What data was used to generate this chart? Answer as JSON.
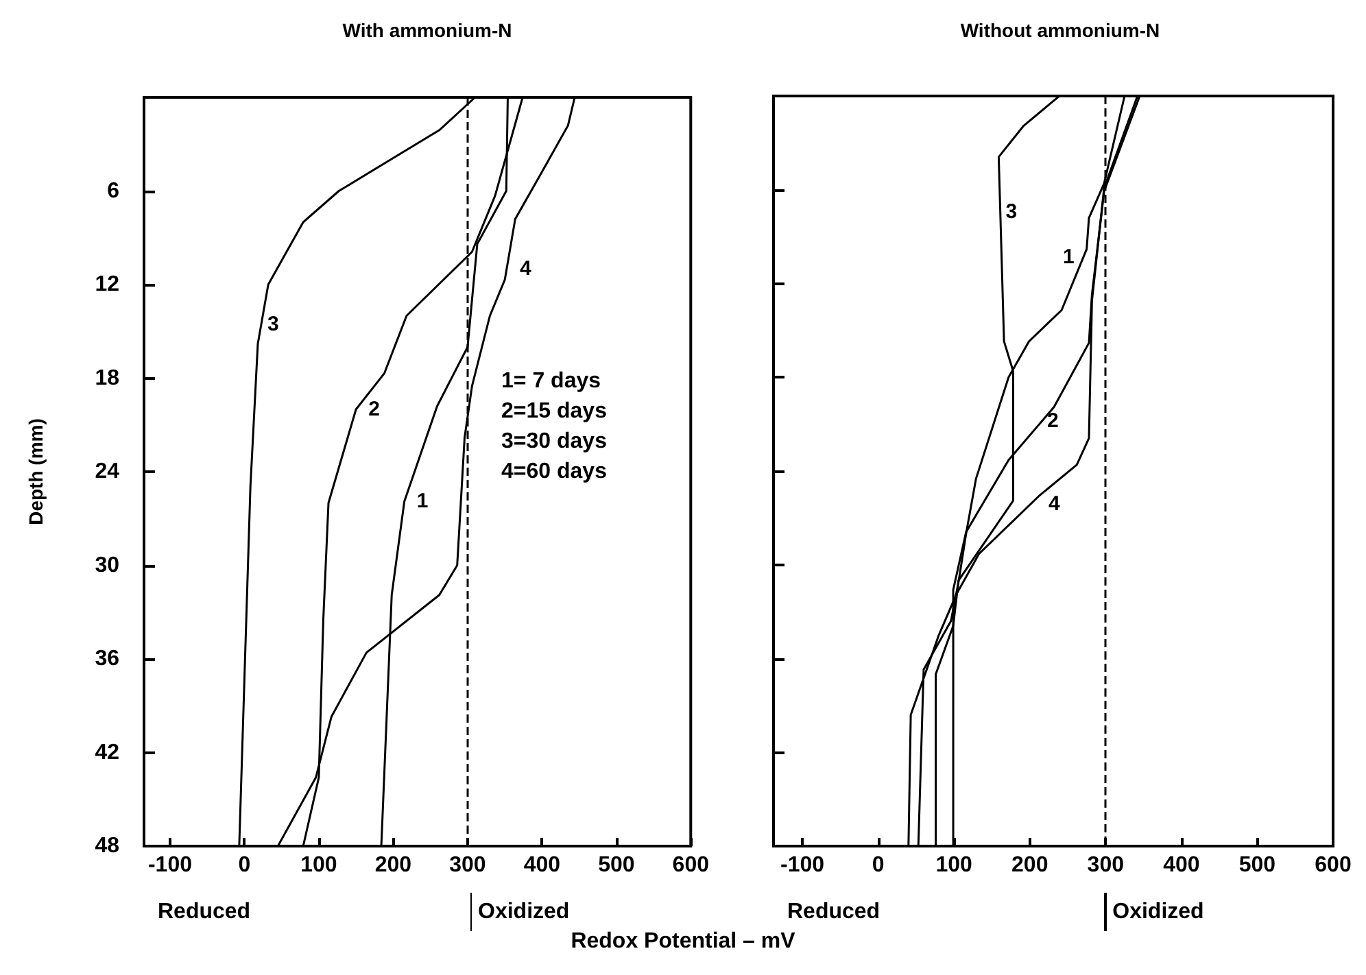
{
  "chart_data": [
    {
      "type": "line",
      "title": "With ammonium-N",
      "xlabel": "Redox Potential – mV",
      "ylabel": "Depth (mm)",
      "xlim": [
        -135,
        600
      ],
      "xticks": [
        -100,
        0,
        100,
        200,
        300,
        400,
        500,
        600
      ],
      "ylim": [
        48,
        0
      ],
      "yticks": [
        6,
        12,
        18,
        24,
        30,
        36,
        42,
        48
      ],
      "grid": false,
      "line_style": "solid",
      "marker": "none",
      "series": [
        {
          "name": "1",
          "color": "#000000",
          "x": [
            354,
            352,
            313,
            300,
            259,
            215,
            198,
            184
          ],
          "values": [
            0,
            6,
            9.4,
            16,
            19.8,
            25.9,
            31.9,
            48
          ]
        },
        {
          "name": "2",
          "color": "#000000",
          "x": [
            374,
            337,
            306,
            218,
            188,
            150,
            113,
            106,
            100,
            79
          ],
          "values": [
            0,
            6.3,
            9.9,
            14,
            17.7,
            20,
            26,
            33.5,
            43.6,
            48
          ]
        },
        {
          "name": "3",
          "color": "#000000",
          "x": [
            310,
            262,
            127,
            79,
            32,
            18,
            8,
            -7
          ],
          "values": [
            0,
            2.1,
            6,
            8,
            12,
            15.8,
            25,
            48
          ]
        },
        {
          "name": "4",
          "color": "#000000",
          "x": [
            444,
            435,
            395,
            364,
            350,
            330,
            306,
            296,
            286,
            262,
            164,
            117,
            96,
            45
          ],
          "values": [
            0,
            1.8,
            5.2,
            7.8,
            11.7,
            14,
            18.5,
            21.8,
            30,
            31.9,
            35.6,
            39.7,
            43.6,
            48
          ]
        }
      ],
      "ref_lines": [
        {
          "axis": "x",
          "value": 300,
          "label": "Oxidized",
          "line_style": "dashed"
        }
      ],
      "annotations": [
        "Reduced",
        "1= 7 days",
        "2=15 days",
        "3=30 days",
        "4=60 days"
      ]
    },
    {
      "type": "line",
      "title": "Without ammonium-N",
      "xlim": [
        -138,
        600
      ],
      "xticks": [
        -100,
        0,
        100,
        200,
        300,
        400,
        500,
        600
      ],
      "ylim": [
        48,
        0
      ],
      "yticks": [
        6,
        12,
        18,
        24,
        30,
        36,
        42,
        48
      ],
      "grid": false,
      "tick_labels": "x",
      "line_style": "solid",
      "marker": "none",
      "series": [
        {
          "name": "1",
          "color": "#000000",
          "x": [
            325,
            298,
            278,
            275,
            242,
            199,
            172,
            129,
            116,
            106,
            96,
            60,
            53
          ],
          "values": [
            0,
            5.6,
            7.8,
            9.8,
            13.7,
            15.7,
            18,
            24.5,
            28,
            31.1,
            33.6,
            36.7,
            48
          ]
        },
        {
          "name": "2",
          "color": "#000000",
          "x": [
            345,
            298,
            282,
            278,
            232,
            172,
            116,
            99,
            99
          ],
          "values": [
            0,
            6.1,
            12.7,
            15.8,
            19.9,
            23.3,
            27.9,
            31.6,
            48
          ]
        },
        {
          "name": "3",
          "color": "#000000",
          "x": [
            239,
            192,
            159,
            166,
            178,
            178,
            106,
            99,
            76,
            76
          ],
          "values": [
            0,
            1.9,
            3.9,
            15.7,
            17.6,
            25.9,
            31,
            33.9,
            37,
            48
          ]
        },
        {
          "name": "4",
          "color": "#000000",
          "x": [
            342,
            298,
            282,
            278,
            262,
            212,
            133,
            103,
            80,
            43,
            40
          ],
          "values": [
            0,
            5.9,
            13.1,
            21.9,
            23.6,
            25.6,
            29.3,
            31.9,
            34.5,
            39.6,
            48
          ]
        }
      ],
      "ref_lines": [
        {
          "axis": "x",
          "value": 300,
          "label": "Oxidized",
          "line_style": "dashed"
        }
      ],
      "annotations": [
        "Reduced"
      ]
    }
  ]
}
